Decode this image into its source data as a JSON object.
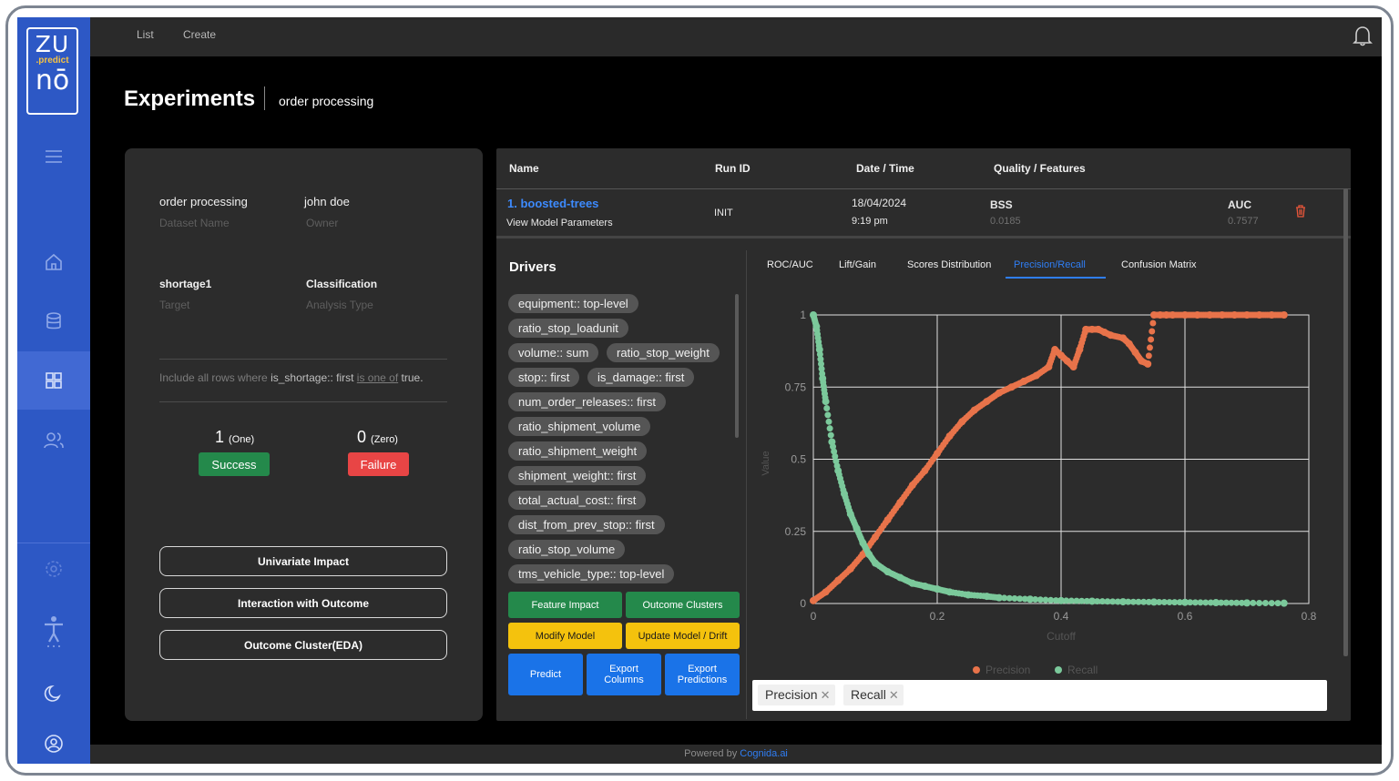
{
  "app": {
    "logo_top": "ZU",
    "logo_middle": ".predict",
    "logo_bottom": "nō"
  },
  "topbar": {
    "nav": [
      "List",
      "Create"
    ]
  },
  "page": {
    "title": "Experiments",
    "subtitle": "order processing"
  },
  "summary": {
    "dataset_name": "order processing",
    "dataset_name_label": "Dataset Name",
    "owner": "john doe",
    "owner_label": "Owner",
    "target": "shortage1",
    "target_label": "Target",
    "analysis_type": "Classification",
    "analysis_type_label": "Analysis Type",
    "filter_prefix": "Include all rows where",
    "filter_field": "is_shortage:: first",
    "filter_op": "is one of",
    "filter_value": "true.",
    "one_count": "1",
    "one_label": "(One)",
    "zero_count": "0",
    "zero_label": "(Zero)",
    "success_label": "Success",
    "failure_label": "Failure",
    "buttons": [
      "Univariate Impact",
      "Interaction with Outcome",
      "Outcome Cluster(EDA)"
    ]
  },
  "runs_table": {
    "headers": [
      "Name",
      "Run ID",
      "Date / Time",
      "Quality / Features"
    ],
    "row": {
      "name": "1. boosted-trees",
      "link": "View Model Parameters",
      "run_id": "INIT",
      "date": "18/04/2024",
      "time": "9:19 pm",
      "metric1_label": "BSS",
      "metric1_value": "0.0185",
      "metric2_label": "AUC",
      "metric2_value": "0.7577"
    }
  },
  "drivers": {
    "title": "Drivers",
    "chips": [
      "equipment:: top-level",
      "ratio_stop_loadunit",
      "volume:: sum",
      "ratio_stop_weight",
      "stop:: first",
      "is_damage:: first",
      "num_order_releases:: first",
      "ratio_shipment_volume",
      "ratio_shipment_weight",
      "shipment_weight:: first",
      "total_actual_cost:: first",
      "dist_from_prev_stop:: first",
      "ratio_stop_volume",
      "tms_vehicle_type:: top-level"
    ],
    "actions": {
      "feature_impact": "Feature Impact",
      "outcome_clusters": "Outcome Clusters",
      "modify_model": "Modify Model",
      "update_model": "Update Model / Drift",
      "predict": "Predict",
      "export_columns": "Export Columns",
      "export_predictions": "Export Predictions"
    }
  },
  "chart_tabs": [
    "ROC/AUC",
    "Lift/Gain",
    "Scores Distribution",
    "Precision/Recall",
    "Confusion Matrix"
  ],
  "active_tab": "Precision/Recall",
  "chart_data": {
    "type": "scatter",
    "xlabel": "Cutoff",
    "ylabel": "Value",
    "xlim": [
      0,
      0.8
    ],
    "ylim": [
      0,
      1
    ],
    "xticks": [
      "0",
      "0.2",
      "0.4",
      "0.6",
      "0.8"
    ],
    "yticks": [
      "0",
      "0.25",
      "0.5",
      "0.75",
      "1"
    ],
    "grid": true,
    "legend_position": "bottom",
    "series": [
      {
        "name": "Precision",
        "color": "#e8734a",
        "x": [
          0,
          0.02,
          0.04,
          0.06,
          0.08,
          0.1,
          0.12,
          0.14,
          0.16,
          0.18,
          0.2,
          0.22,
          0.24,
          0.26,
          0.28,
          0.3,
          0.32,
          0.34,
          0.36,
          0.38,
          0.39,
          0.4,
          0.41,
          0.42,
          0.43,
          0.44,
          0.45,
          0.46,
          0.47,
          0.48,
          0.5,
          0.51,
          0.52,
          0.53,
          0.54,
          0.55,
          0.56,
          0.57,
          0.58,
          0.6,
          0.62,
          0.64,
          0.66,
          0.68,
          0.7,
          0.72,
          0.74,
          0.76
        ],
        "values": [
          0.01,
          0.04,
          0.08,
          0.12,
          0.17,
          0.23,
          0.29,
          0.35,
          0.41,
          0.46,
          0.52,
          0.58,
          0.63,
          0.67,
          0.7,
          0.73,
          0.75,
          0.77,
          0.79,
          0.82,
          0.88,
          0.86,
          0.84,
          0.82,
          0.88,
          0.95,
          0.95,
          0.95,
          0.94,
          0.93,
          0.92,
          0.9,
          0.87,
          0.84,
          0.83,
          1.0,
          1.0,
          1.0,
          1.0,
          1.0,
          1.0,
          1.0,
          1.0,
          1.0,
          1.0,
          1.0,
          1.0,
          1.0
        ]
      },
      {
        "name": "Recall",
        "color": "#7bc99b",
        "x": [
          0,
          0.005,
          0.01,
          0.015,
          0.02,
          0.03,
          0.04,
          0.05,
          0.06,
          0.07,
          0.08,
          0.09,
          0.1,
          0.12,
          0.14,
          0.16,
          0.18,
          0.2,
          0.22,
          0.25,
          0.28,
          0.3,
          0.35,
          0.4,
          0.45,
          0.5,
          0.55,
          0.6,
          0.65,
          0.7,
          0.76
        ],
        "values": [
          1.0,
          0.96,
          0.88,
          0.78,
          0.7,
          0.56,
          0.46,
          0.38,
          0.31,
          0.26,
          0.21,
          0.17,
          0.14,
          0.11,
          0.09,
          0.07,
          0.06,
          0.05,
          0.04,
          0.03,
          0.025,
          0.02,
          0.015,
          0.01,
          0.008,
          0.006,
          0.005,
          0.004,
          0.003,
          0.002,
          0.001
        ]
      }
    ]
  },
  "selected_series": [
    "Precision",
    "Recall"
  ],
  "footer": {
    "prefix": "Powered by",
    "link": "Cognida.ai"
  }
}
